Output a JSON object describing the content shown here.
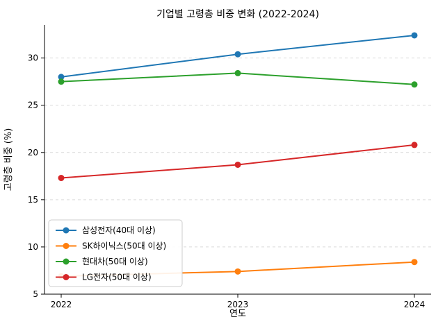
{
  "chart_data": {
    "type": "line",
    "title": "기업별 고령층 비중 변화 (2022-2024)",
    "xlabel": "연도",
    "ylabel": "고령층 비중 (%)",
    "x": [
      2022,
      2023,
      2024
    ],
    "xticklabels": [
      "2022",
      "2023",
      "2024"
    ],
    "yticks": [
      5,
      10,
      15,
      20,
      25,
      30
    ],
    "ylim": [
      5,
      33.5
    ],
    "grid": true,
    "grid_style": "dashed",
    "legend_position": "lower left",
    "series": [
      {
        "name": "삼성전자(40대 이상)",
        "color": "#1f77b4",
        "values": [
          28.0,
          30.4,
          32.4
        ]
      },
      {
        "name": "SK하이닉스(50대 이상)",
        "color": "#ff7f0e",
        "values": [
          6.9,
          7.4,
          8.4
        ]
      },
      {
        "name": "현대차(50대 이상)",
        "color": "#2ca02c",
        "values": [
          27.5,
          28.4,
          27.2
        ]
      },
      {
        "name": "LG전자(50대 이상)",
        "color": "#d62728",
        "values": [
          17.3,
          18.7,
          20.8
        ]
      }
    ]
  }
}
